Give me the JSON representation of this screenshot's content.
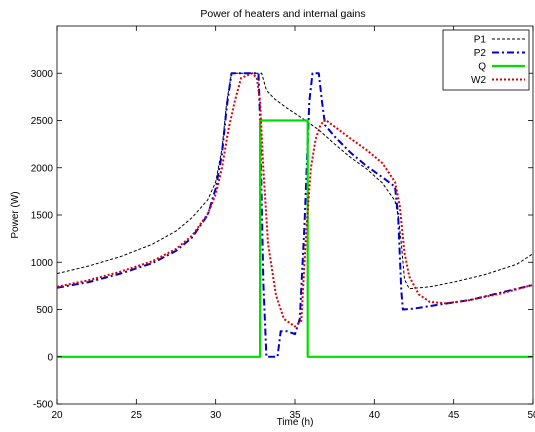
{
  "chart_data": {
    "type": "line",
    "title": "Power of heaters and internal gains",
    "xlabel": "Time (h)",
    "ylabel": "Power (W)",
    "xlim": [
      20,
      50
    ],
    "ylim": [
      -500,
      3500
    ],
    "x_ticks": [
      20,
      25,
      30,
      35,
      40,
      45,
      50
    ],
    "y_ticks": [
      -500,
      0,
      500,
      1000,
      1500,
      2000,
      2500,
      3000
    ],
    "grid": false,
    "legend_position": "top-right",
    "series": [
      {
        "name": "P1",
        "color": "#000000",
        "style": "dashed",
        "points": [
          [
            20,
            880
          ],
          [
            22,
            960
          ],
          [
            24,
            1060
          ],
          [
            26,
            1190
          ],
          [
            27.5,
            1330
          ],
          [
            28.5,
            1470
          ],
          [
            29.5,
            1660
          ],
          [
            30,
            1850
          ],
          [
            30.4,
            2200
          ],
          [
            30.7,
            2700
          ],
          [
            31,
            3000
          ],
          [
            32.9,
            3000
          ],
          [
            33.2,
            2820
          ],
          [
            33.7,
            2730
          ],
          [
            34.5,
            2630
          ],
          [
            35.5,
            2520
          ],
          [
            36.5,
            2400
          ],
          [
            37.5,
            2250
          ],
          [
            38.5,
            2110
          ],
          [
            39.5,
            1990
          ],
          [
            40.5,
            1840
          ],
          [
            41.3,
            1650
          ],
          [
            41.5,
            1500
          ],
          [
            41.7,
            1200
          ],
          [
            41.9,
            820
          ],
          [
            42.2,
            720
          ],
          [
            43.5,
            740
          ],
          [
            45,
            790
          ],
          [
            47,
            870
          ],
          [
            49,
            980
          ],
          [
            50,
            1090
          ]
        ]
      },
      {
        "name": "P2",
        "color": "#0000cc",
        "style": "dashdot",
        "points": [
          [
            20,
            730
          ],
          [
            22,
            790
          ],
          [
            24,
            880
          ],
          [
            26,
            990
          ],
          [
            27.5,
            1120
          ],
          [
            28.5,
            1260
          ],
          [
            29.5,
            1500
          ],
          [
            30,
            1780
          ],
          [
            30.4,
            2150
          ],
          [
            30.7,
            2650
          ],
          [
            31,
            3000
          ],
          [
            32.7,
            3000
          ],
          [
            32.8,
            2500
          ],
          [
            33,
            800
          ],
          [
            33.2,
            0
          ],
          [
            33.9,
            0
          ],
          [
            34.1,
            270
          ],
          [
            34.5,
            270
          ],
          [
            35,
            240
          ],
          [
            35.3,
            400
          ],
          [
            35.6,
            1400
          ],
          [
            35.9,
            2700
          ],
          [
            36.1,
            3000
          ],
          [
            36.5,
            3000
          ],
          [
            36.7,
            2700
          ],
          [
            36.9,
            2450
          ],
          [
            37.5,
            2330
          ],
          [
            38.5,
            2160
          ],
          [
            39.5,
            2020
          ],
          [
            40.5,
            1900
          ],
          [
            41.3,
            1800
          ],
          [
            41.5,
            1500
          ],
          [
            41.7,
            700
          ],
          [
            41.8,
            500
          ],
          [
            42.5,
            510
          ],
          [
            44,
            550
          ],
          [
            46,
            600
          ],
          [
            48,
            680
          ],
          [
            50,
            760
          ]
        ]
      },
      {
        "name": "Q",
        "color": "#00dd00",
        "style": "solid",
        "points": [
          [
            20,
            0
          ],
          [
            32.8,
            0
          ],
          [
            32.8,
            2500
          ],
          [
            35.8,
            2500
          ],
          [
            35.8,
            0
          ],
          [
            50,
            0
          ]
        ]
      },
      {
        "name": "W2",
        "color": "#dd0000",
        "style": "dotted",
        "points": [
          [
            20,
            740
          ],
          [
            22,
            810
          ],
          [
            24,
            900
          ],
          [
            26,
            1010
          ],
          [
            27.5,
            1140
          ],
          [
            28.5,
            1280
          ],
          [
            29.5,
            1510
          ],
          [
            30,
            1720
          ],
          [
            30.4,
            2000
          ],
          [
            30.8,
            2400
          ],
          [
            31.2,
            2700
          ],
          [
            31.6,
            2950
          ],
          [
            32.3,
            3000
          ],
          [
            32.6,
            2950
          ],
          [
            32.8,
            2700
          ],
          [
            33,
            2000
          ],
          [
            33.3,
            1200
          ],
          [
            33.8,
            650
          ],
          [
            34.3,
            400
          ],
          [
            35,
            320
          ],
          [
            35.4,
            380
          ],
          [
            35.7,
            1300
          ],
          [
            36,
            2000
          ],
          [
            36.3,
            2300
          ],
          [
            36.6,
            2450
          ],
          [
            36.9,
            2510
          ],
          [
            37.3,
            2460
          ],
          [
            38.5,
            2310
          ],
          [
            39.5,
            2190
          ],
          [
            40.5,
            2050
          ],
          [
            41.3,
            1850
          ],
          [
            41.6,
            1600
          ],
          [
            41.9,
            1100
          ],
          [
            42.2,
            850
          ],
          [
            42.8,
            660
          ],
          [
            43.5,
            580
          ],
          [
            44.5,
            565
          ],
          [
            46,
            600
          ],
          [
            48,
            670
          ],
          [
            50,
            760
          ]
        ]
      }
    ]
  }
}
